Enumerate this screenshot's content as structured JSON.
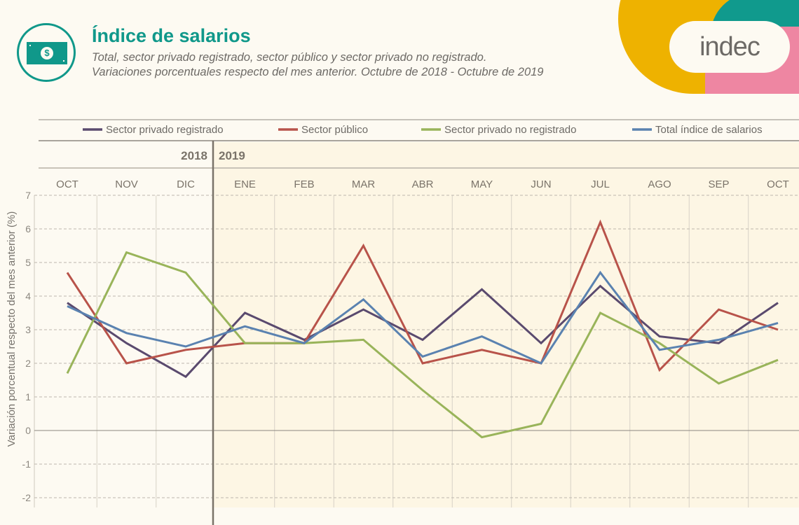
{
  "header": {
    "icon": "banknote-dollar-icon",
    "title": "Índice de salarios",
    "subtitle_line1": "Total, sector privado registrado, sector público y sector privado no registrado.",
    "subtitle_line2": "Variaciones porcentuales respecto del mes anterior. Octubre de 2018 - Octubre de 2019",
    "logo_text": "indec"
  },
  "colors": {
    "teal": "#10988a",
    "yellow": "#eeb200",
    "pink": "#ee86a2",
    "purple": "#5a4a6e",
    "red": "#b8534a",
    "green": "#99b45a",
    "blue": "#5a82b0",
    "highlight_bg": "#fdf6e4"
  },
  "chart_data": {
    "type": "line",
    "title": "Índice de salarios",
    "xlabel": "",
    "ylabel": "Variación porcentual respecto del mes anterior (%)",
    "ylim": [
      -2,
      7
    ],
    "yticks": [
      "7",
      "6",
      "5",
      "4",
      "3",
      "2",
      "1",
      "0",
      "-1",
      "-2"
    ],
    "grid": true,
    "legend_position": "top",
    "years": [
      {
        "label": "2018",
        "months": 3
      },
      {
        "label": "2019",
        "months": 10
      }
    ],
    "categories": [
      "OCT",
      "NOV",
      "DIC",
      "ENE",
      "FEB",
      "MAR",
      "ABR",
      "MAY",
      "JUN",
      "JUL",
      "AGO",
      "SEP",
      "OCT"
    ],
    "series": [
      {
        "name": "Sector privado registrado",
        "color": "#5a4a6e",
        "values": [
          3.8,
          2.6,
          1.6,
          3.5,
          2.7,
          3.6,
          2.7,
          4.2,
          2.6,
          4.3,
          2.8,
          2.6,
          3.8
        ]
      },
      {
        "name": "Sector público",
        "color": "#b8534a",
        "values": [
          4.7,
          2.0,
          2.4,
          2.6,
          2.6,
          5.5,
          2.0,
          2.4,
          2.0,
          6.2,
          1.8,
          3.6,
          3.0
        ]
      },
      {
        "name": "Sector privado no registrado",
        "color": "#99b45a",
        "values": [
          1.7,
          5.3,
          4.7,
          2.6,
          2.6,
          2.7,
          1.2,
          -0.2,
          0.2,
          3.5,
          2.6,
          1.4,
          2.1
        ]
      },
      {
        "name": "Total índice de salarios",
        "color": "#5a82b0",
        "values": [
          3.7,
          2.9,
          2.5,
          3.1,
          2.6,
          3.9,
          2.2,
          2.8,
          2.0,
          4.7,
          2.4,
          2.7,
          3.2
        ]
      }
    ]
  }
}
